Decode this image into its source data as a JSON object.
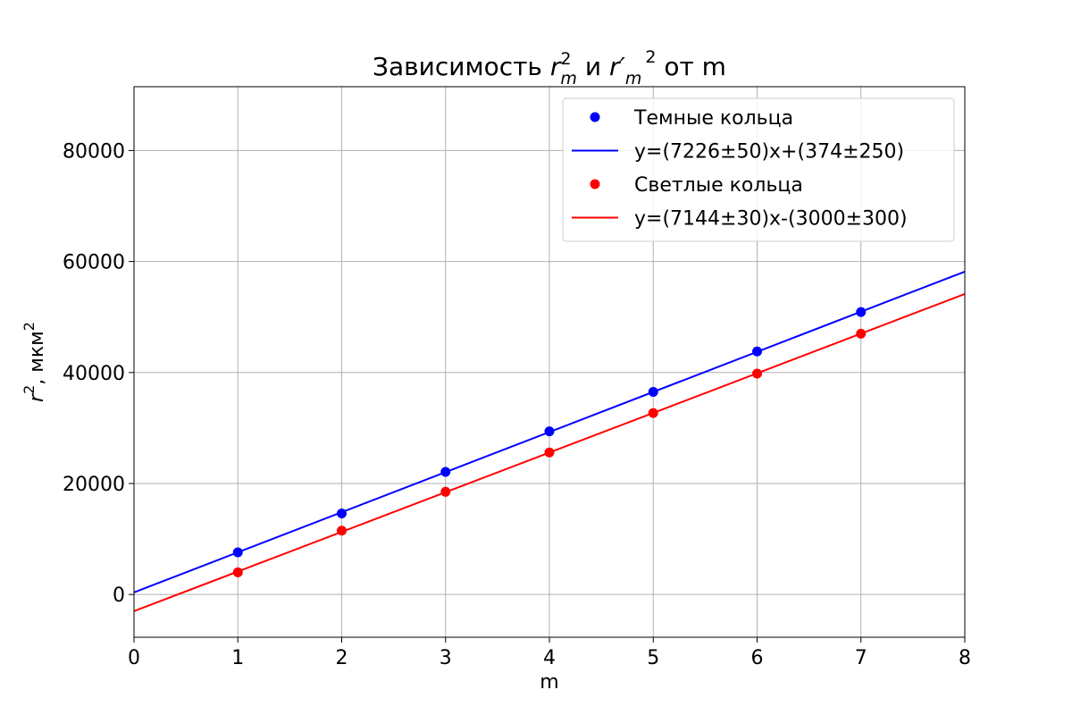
{
  "chart_data": {
    "type": "scatter",
    "title": {
      "prefix": "Зависимость ",
      "sym1": "r",
      "sup1": "2",
      "sub1": "m",
      "mid": " и ",
      "sym2": "r",
      "prime": "′",
      "sub2": "m",
      "sup2": "2",
      "suffix": " от m"
    },
    "xlabel": "m",
    "ylabel": {
      "sym": "r",
      "sup": "2",
      "rest": ", мкм",
      "unit_sup": "2"
    },
    "xlim": [
      0,
      8
    ],
    "ylim": [
      -7700,
      91500
    ],
    "x_ticks": [
      0,
      1,
      2,
      3,
      4,
      5,
      6,
      7,
      8
    ],
    "y_ticks": [
      0,
      20000,
      40000,
      60000,
      80000
    ],
    "grid": true,
    "legend_position": "top-right",
    "series": [
      {
        "name": "Темные кольца",
        "kind": "points",
        "color": "#0000ff",
        "x": [
          1,
          2,
          3,
          4,
          5,
          6,
          7
        ],
        "y": [
          7600,
          14600,
          22100,
          29400,
          36500,
          43800,
          50900
        ]
      },
      {
        "name": "y=(7226±50)x+(374±250)",
        "kind": "line",
        "color": "#0000ff",
        "slope": 7226,
        "intercept": 374
      },
      {
        "name": "Светлые кольца",
        "kind": "points",
        "color": "#ff0000",
        "x": [
          1,
          2,
          3,
          4,
          5,
          6,
          7
        ],
        "y": [
          4000,
          11500,
          18500,
          25600,
          32700,
          39800,
          47000
        ]
      },
      {
        "name": "y=(7144±30)x-(3000±300)",
        "kind": "line",
        "color": "#ff0000",
        "slope": 7144,
        "intercept": -3000
      }
    ]
  }
}
